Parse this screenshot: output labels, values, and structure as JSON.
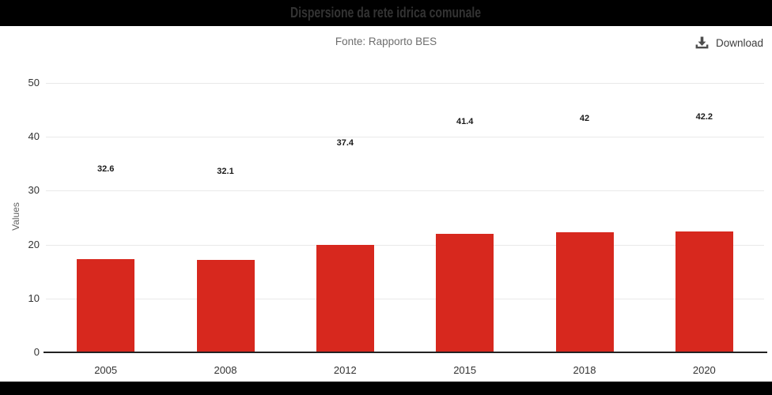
{
  "header": {
    "title": "Dispersione da rete idrica comunale"
  },
  "subtitle": "Fonte: Rapporto BES",
  "toolbar": {
    "download_label": "Download",
    "download_icon": "download-tray-arrow"
  },
  "colors": {
    "header_bg": "#000000",
    "header_text": "#333333",
    "footer_bg": "#000000",
    "bar": "#d7281e",
    "grid": "#e9e9e9",
    "axis": "#222222",
    "subtitle_text": "#6e6e6e",
    "tick_text": "#333333",
    "ylabel_text": "#666666"
  },
  "chart_data": {
    "type": "bar",
    "title": "Dispersione da rete idrica comunale",
    "subtitle": "Fonte: Rapporto BES",
    "categories": [
      "2005",
      "2008",
      "2012",
      "2015",
      "2018",
      "2020"
    ],
    "values": [
      32.6,
      32.1,
      37.4,
      41.4,
      42,
      42.2
    ],
    "value_labels": [
      "32.6",
      "32.1",
      "37.4",
      "41.4",
      "42",
      "42.2"
    ],
    "xlabel": "",
    "ylabel": "Values",
    "ylim": [
      0,
      50
    ],
    "yticks": [
      0,
      10,
      20,
      30,
      40,
      50
    ],
    "ytick_labels": [
      "0",
      "10",
      "20",
      "30",
      "40",
      "50"
    ],
    "grid": true,
    "legend": false,
    "bar_color": "#d7281e",
    "series_name": "Values"
  }
}
